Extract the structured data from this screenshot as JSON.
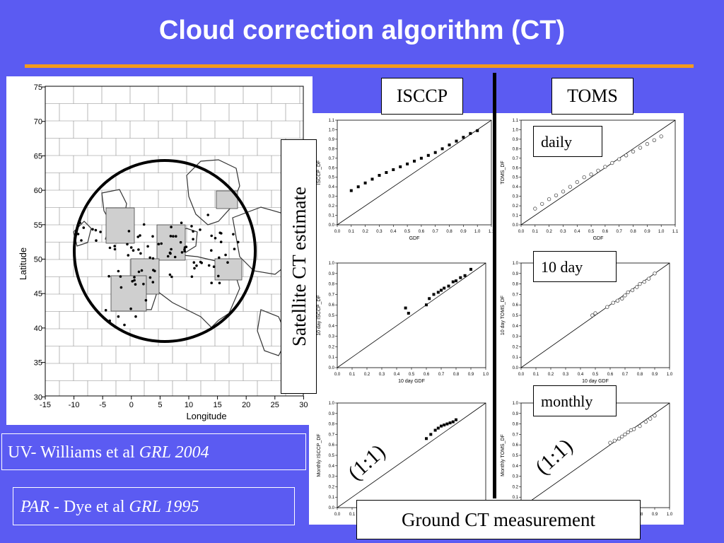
{
  "title": "Cloud correction algorithm (CT)",
  "colors": {
    "background": "#5b5bf2",
    "accent": "#f39a1e"
  },
  "map": {
    "ylabel": "Latitude",
    "xlabel": "Longitude",
    "lat_ticks": [
      "75",
      "70",
      "65",
      "60",
      "55",
      "50",
      "45",
      "40",
      "35",
      "30"
    ],
    "lon_ticks": [
      "-15",
      "-10",
      "-5",
      "0",
      "5",
      "10",
      "15",
      "20",
      "25",
      "30"
    ]
  },
  "labels": {
    "isccp": "ISCCP",
    "toms": "TOMS",
    "daily": "daily",
    "ten_day": "10 day",
    "monthly": "monthly",
    "satellite": "Satellite CT estimate",
    "ground": "Ground CT measurement",
    "one_to_one_left": "(1:1)",
    "one_to_one_right": "(1:1)"
  },
  "refs": {
    "uv_prefix": "UV- Williams et al ",
    "uv_journal": "GRL 2004",
    "par_term": "PAR",
    "par_mid": " - Dye et al ",
    "par_journal": "GRL 1995"
  },
  "chart_data": [
    {
      "type": "scatter",
      "panel": "ISCCP daily",
      "xlabel": "GDF",
      "ylabel": "ISCCP_DF",
      "ticks": [
        "0.0",
        "0.1",
        "0.2",
        "0.3",
        "0.4",
        "0.5",
        "0.6",
        "0.7",
        "0.8",
        "0.9",
        "1.0",
        "1.1"
      ],
      "xlim": [
        0,
        1.1
      ],
      "ylim": [
        0,
        1.1
      ],
      "marker": "filled-square",
      "x": [
        0.1,
        0.15,
        0.2,
        0.25,
        0.3,
        0.35,
        0.4,
        0.45,
        0.5,
        0.55,
        0.6,
        0.65,
        0.7,
        0.75,
        0.8,
        0.85,
        0.9,
        0.95,
        1.0
      ],
      "y": [
        0.36,
        0.4,
        0.44,
        0.48,
        0.52,
        0.55,
        0.58,
        0.61,
        0.64,
        0.67,
        0.7,
        0.73,
        0.76,
        0.8,
        0.84,
        0.88,
        0.92,
        0.96,
        0.99
      ]
    },
    {
      "type": "scatter",
      "panel": "TOMS daily",
      "xlabel": "GDF",
      "ylabel": "TOMS_DF",
      "ticks": [
        "0.0",
        "0.1",
        "0.2",
        "0.3",
        "0.4",
        "0.5",
        "0.6",
        "0.7",
        "0.8",
        "0.9",
        "1.0",
        "1.1"
      ],
      "xlim": [
        0,
        1.1
      ],
      "ylim": [
        0,
        1.1
      ],
      "marker": "open-circle",
      "x": [
        0.1,
        0.15,
        0.2,
        0.25,
        0.3,
        0.35,
        0.4,
        0.45,
        0.5,
        0.55,
        0.6,
        0.65,
        0.7,
        0.75,
        0.8,
        0.85,
        0.9,
        0.95,
        1.0
      ],
      "y": [
        0.17,
        0.22,
        0.27,
        0.31,
        0.35,
        0.4,
        0.45,
        0.5,
        0.53,
        0.57,
        0.61,
        0.65,
        0.69,
        0.73,
        0.77,
        0.81,
        0.85,
        0.89,
        0.93
      ]
    },
    {
      "type": "scatter",
      "panel": "ISCCP 10 day",
      "xlabel": "10 day GDF",
      "ylabel": "10 day ISCCP_DF",
      "ticks": [
        "0.0",
        "0.1",
        "0.2",
        "0.3",
        "0.4",
        "0.5",
        "0.6",
        "0.7",
        "0.8",
        "0.9",
        "1.0"
      ],
      "xlim": [
        0,
        1.0
      ],
      "ylim": [
        0,
        1.0
      ],
      "marker": "filled-square",
      "x": [
        0.46,
        0.48,
        0.6,
        0.62,
        0.65,
        0.68,
        0.7,
        0.72,
        0.75,
        0.78,
        0.8,
        0.83,
        0.86,
        0.9
      ],
      "y": [
        0.57,
        0.52,
        0.6,
        0.66,
        0.7,
        0.72,
        0.74,
        0.76,
        0.78,
        0.82,
        0.83,
        0.86,
        0.88,
        0.94
      ]
    },
    {
      "type": "scatter",
      "panel": "TOMS 10 day",
      "xlabel": "10 day GDF",
      "ylabel": "10 day TOMS_DF",
      "ticks": [
        "0.0",
        "0.1",
        "0.2",
        "0.3",
        "0.4",
        "0.5",
        "0.6",
        "0.7",
        "0.8",
        "0.9",
        "1.0"
      ],
      "xlim": [
        0,
        1.0
      ],
      "ylim": [
        0,
        1.0
      ],
      "marker": "open-circle",
      "x": [
        0.48,
        0.5,
        0.58,
        0.62,
        0.65,
        0.68,
        0.7,
        0.72,
        0.75,
        0.78,
        0.8,
        0.83,
        0.86,
        0.9
      ],
      "y": [
        0.5,
        0.52,
        0.58,
        0.62,
        0.64,
        0.66,
        0.69,
        0.72,
        0.74,
        0.77,
        0.8,
        0.82,
        0.85,
        0.9
      ]
    },
    {
      "type": "scatter",
      "panel": "ISCCP monthly",
      "xlabel": "",
      "ylabel": "Monthly ISCCP_DF",
      "ticks": [
        "0.0",
        "0.1",
        "0.2",
        "0.3",
        "0.4",
        "0.5",
        "0.6",
        "0.7",
        "0.8",
        "0.9",
        "1.0"
      ],
      "xlim": [
        0,
        1.0
      ],
      "ylim": [
        0,
        1.0
      ],
      "marker": "filled-square",
      "x": [
        0.6,
        0.63,
        0.66,
        0.68,
        0.7,
        0.72,
        0.74,
        0.76,
        0.78,
        0.8
      ],
      "y": [
        0.66,
        0.7,
        0.74,
        0.76,
        0.78,
        0.79,
        0.8,
        0.81,
        0.82,
        0.84
      ]
    },
    {
      "type": "scatter",
      "panel": "TOMS monthly",
      "xlabel": "",
      "ylabel": "Monthly TOMS_DF",
      "ticks": [
        "0.0",
        "0.1",
        "0.2",
        "0.3",
        "0.4",
        "0.5",
        "0.6",
        "0.7",
        "0.8",
        "0.9",
        "1.0"
      ],
      "xlim": [
        0,
        1.0
      ],
      "ylim": [
        0,
        1.0
      ],
      "marker": "open-circle",
      "x": [
        0.6,
        0.63,
        0.66,
        0.68,
        0.7,
        0.72,
        0.74,
        0.76,
        0.8,
        0.84,
        0.87,
        0.9
      ],
      "y": [
        0.62,
        0.64,
        0.66,
        0.68,
        0.7,
        0.72,
        0.74,
        0.75,
        0.78,
        0.82,
        0.85,
        0.88
      ]
    }
  ]
}
